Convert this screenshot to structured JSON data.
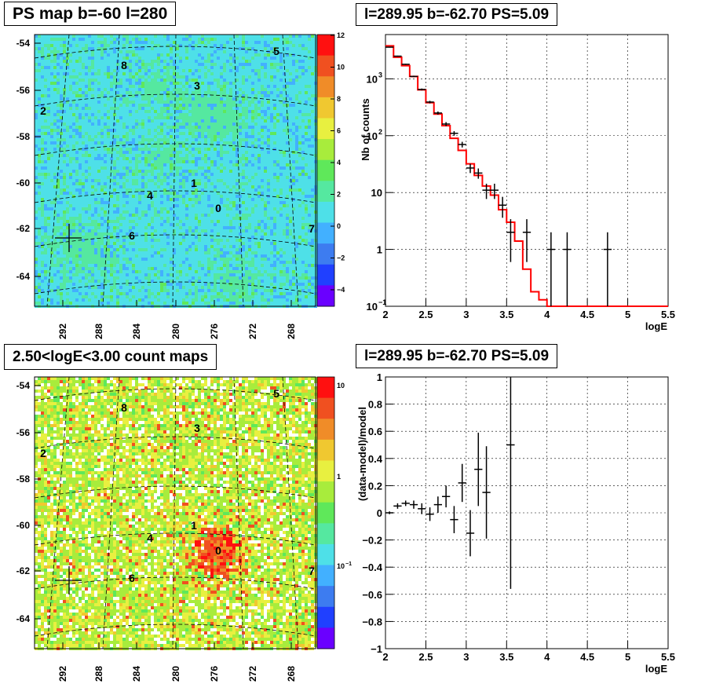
{
  "chart_data": [
    {
      "type": "heatmap",
      "title": "PS map b=-60 l=280",
      "y_ticks": [
        "-54",
        "-56",
        "-58",
        "-60",
        "-62",
        "-64"
      ],
      "x_ticks": [
        "292",
        "288",
        "284",
        "280",
        "276",
        "272",
        "268"
      ],
      "colorbar_ticks": [
        "12",
        "10",
        "8",
        "6",
        "4",
        "2",
        "0",
        "−2",
        "−4"
      ],
      "source_labels": [
        "0",
        "1",
        "2",
        "3",
        "4",
        "5",
        "6",
        "7",
        "8"
      ],
      "palette": [
        "#6a00ff",
        "#2040ff",
        "#3d7cf0",
        "#42b0ff",
        "#4ee0e8",
        "#55e8a0",
        "#5fe85a",
        "#a8ec3c",
        "#e8f040",
        "#f0c830",
        "#f08c28",
        "#f05020",
        "#ff1010"
      ]
    },
    {
      "type": "line",
      "title": "l=289.95 b=-62.70 PS=5.09",
      "xlabel": "logE",
      "ylabel": "Nb of counts",
      "yscale": "log",
      "xlim": [
        2,
        5.5
      ],
      "ylim": [
        0.1,
        6000
      ],
      "x_ticks": [
        "2",
        "2.5",
        "3",
        "3.5",
        "4",
        "4.5",
        "5",
        "5.5"
      ],
      "y_ticks": [
        "10",
        "1",
        "10"
      ],
      "y_tick_exponents": [
        "−1",
        "",
        "",
        "2",
        "3"
      ],
      "model_color": "#ff0000",
      "series": [
        {
          "kind": "model-step",
          "bin_edges": [
            2.0,
            2.1,
            2.2,
            2.3,
            2.4,
            2.5,
            2.6,
            2.7,
            2.8,
            2.9,
            3.0,
            3.1,
            3.2,
            3.3,
            3.4,
            3.5,
            3.6,
            3.7,
            3.8,
            3.9,
            4.0,
            4.1,
            4.2,
            4.3,
            4.4,
            4.5,
            4.6,
            4.7,
            4.8,
            4.9,
            5.0,
            5.1,
            5.2,
            5.3,
            5.4,
            5.5
          ],
          "values": [
            3800,
            2400,
            1700,
            1100,
            640,
            380,
            240,
            150,
            90,
            55,
            32,
            20,
            13,
            9,
            5,
            3,
            1.4,
            0.45,
            0.18,
            0.13,
            0.1,
            0.1,
            0.1,
            0.1,
            0.1,
            0.1,
            0.1,
            0.1,
            0.1,
            0.1,
            0.1,
            0.1,
            0.1,
            0.1,
            0.1
          ]
        },
        {
          "kind": "data-points",
          "x": [
            2.05,
            2.15,
            2.25,
            2.35,
            2.45,
            2.55,
            2.65,
            2.75,
            2.85,
            2.95,
            3.05,
            3.15,
            3.25,
            3.35,
            3.45,
            3.55,
            3.75,
            4.05,
            4.25,
            4.75
          ],
          "y": [
            3600,
            2500,
            1800,
            1100,
            650,
            390,
            250,
            160,
            110,
            70,
            27,
            22,
            11,
            11,
            6,
            2,
            2,
            1,
            1,
            1
          ],
          "yerr_lo": [
            60,
            50,
            42,
            33,
            25,
            20,
            16,
            13,
            10,
            8,
            5,
            4.5,
            3.3,
            3.3,
            2.4,
            1.4,
            1.4,
            1,
            1,
            1
          ],
          "yerr_hi": [
            60,
            50,
            42,
            33,
            25,
            20,
            16,
            13,
            10,
            8,
            5,
            4.5,
            3.3,
            3.3,
            2.4,
            1.4,
            1.4,
            1,
            1,
            1
          ]
        }
      ]
    },
    {
      "type": "heatmap",
      "title": "2.50<logE<3.00 count maps",
      "y_ticks": [
        "-54",
        "-56",
        "-58",
        "-60",
        "-62",
        "-64"
      ],
      "x_ticks": [
        "292",
        "288",
        "284",
        "280",
        "276",
        "272",
        "268"
      ],
      "colorbar_ticks": [
        "10",
        "1",
        "10"
      ],
      "colorbar_exponents": [
        "−1"
      ],
      "source_labels": [
        "0",
        "1",
        "2",
        "3",
        "4",
        "5",
        "6",
        "7",
        "8"
      ],
      "palette": [
        "#6a00ff",
        "#2040ff",
        "#3d7cf0",
        "#42b0ff",
        "#4ee0e8",
        "#55e8a0",
        "#5fe85a",
        "#a8ec3c",
        "#e8f040",
        "#f0c830",
        "#f08c28",
        "#f05020",
        "#ff1010"
      ]
    },
    {
      "type": "scatter",
      "title": "l=289.95 b=-62.70 PS=5.09",
      "xlabel": "logE",
      "ylabel": "(data-model)/model",
      "xlim": [
        2,
        5.5
      ],
      "ylim": [
        -1,
        1
      ],
      "x_ticks": [
        "2",
        "2.5",
        "3",
        "3.5",
        "4",
        "4.5",
        "5",
        "5.5"
      ],
      "y_ticks": [
        "−1",
        "−0.8",
        "−0.6",
        "−0.4",
        "−0.2",
        "0",
        "0.2",
        "0.4",
        "0.6",
        "0.8",
        "1"
      ],
      "x": [
        2.05,
        2.15,
        2.25,
        2.35,
        2.45,
        2.55,
        2.65,
        2.75,
        2.85,
        2.95,
        3.05,
        3.15,
        3.25,
        3.55
      ],
      "y": [
        0.0,
        0.05,
        0.07,
        0.06,
        0.03,
        -0.01,
        0.06,
        0.12,
        -0.05,
        0.22,
        -0.15,
        0.32,
        0.15,
        0.5
      ],
      "yerr": [
        0.01,
        0.02,
        0.02,
        0.03,
        0.04,
        0.05,
        0.06,
        0.08,
        0.1,
        0.14,
        0.17,
        0.27,
        0.34,
        1.06
      ]
    }
  ]
}
